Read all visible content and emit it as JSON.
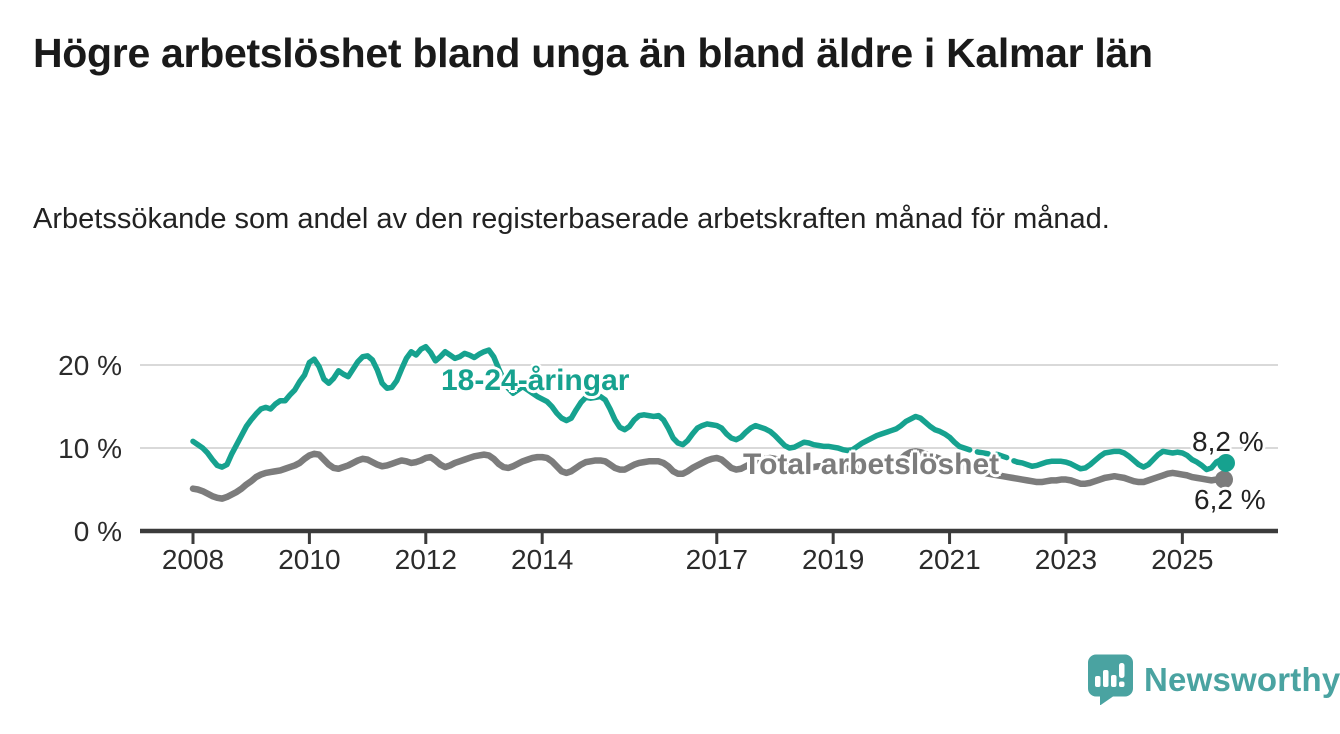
{
  "title": "Högre arbetslöshet bland unga än bland äldre i Kalmar län",
  "subtitle": "Arbetssökande som andel av den registerbaserade arbetskraften månad för månad.",
  "footer": {
    "brand": "Newsworthy",
    "brand_color": "#4aa3a1"
  },
  "colors": {
    "youth_line": "#16a28f",
    "total_line": "#7c7c7c",
    "axis": "#3b3b3b",
    "gridline": "#d9d9d9",
    "text": "#2b2b2b",
    "value_label_text": "#222222"
  },
  "chart_data": {
    "type": "line",
    "title": "",
    "xlabel": "",
    "ylabel": "",
    "x_unit": "month",
    "x_start": "2008-01",
    "x_end": "2025-10",
    "ylim": [
      0,
      24
    ],
    "y_ticks": [
      0,
      10,
      20
    ],
    "y_tick_labels": [
      "0 %",
      "10 %",
      "20 %"
    ],
    "x_tick_labels": [
      "2008",
      "2010",
      "2012",
      "2014",
      "2017",
      "2019",
      "2021",
      "2023",
      "2025"
    ],
    "grid": "horizontal",
    "legend_position": "inline-labels",
    "series": [
      {
        "name": "18-24-åringar",
        "color": "#16a28f",
        "end_label": "8,2 %",
        "end_value": 8.2,
        "dashed_from": "2021-03",
        "dashed_to": "2022-03",
        "values": [
          10.8,
          10.4,
          10.0,
          9.4,
          8.6,
          7.9,
          7.7,
          8.0,
          9.3,
          10.4,
          11.5,
          12.6,
          13.4,
          14.1,
          14.7,
          14.9,
          14.7,
          15.3,
          15.7,
          15.7,
          16.4,
          17.0,
          18.0,
          18.8,
          20.3,
          20.7,
          19.8,
          18.3,
          17.8,
          18.4,
          19.3,
          18.9,
          18.6,
          19.5,
          20.4,
          21.0,
          21.1,
          20.6,
          19.4,
          17.8,
          17.2,
          17.3,
          18.1,
          19.5,
          20.8,
          21.6,
          21.2,
          21.9,
          22.2,
          21.5,
          20.5,
          21.0,
          21.6,
          21.2,
          20.8,
          21.0,
          21.4,
          21.2,
          20.9,
          21.3,
          21.6,
          21.8,
          21.0,
          19.6,
          18.3,
          17.2,
          16.6,
          17.0,
          17.4,
          17.0,
          16.6,
          16.2,
          15.9,
          15.6,
          15.0,
          14.2,
          13.6,
          13.3,
          13.6,
          14.6,
          15.5,
          16.1,
          16.0,
          16.1,
          16.2,
          15.8,
          14.7,
          13.4,
          12.5,
          12.2,
          12.6,
          13.4,
          13.9,
          14.0,
          13.9,
          13.8,
          13.9,
          13.4,
          12.4,
          11.2,
          10.6,
          10.4,
          10.9,
          11.7,
          12.4,
          12.7,
          12.9,
          12.8,
          12.7,
          12.4,
          11.7,
          11.2,
          11.0,
          11.3,
          11.9,
          12.4,
          12.7,
          12.5,
          12.3,
          12.0,
          11.5,
          10.9,
          10.3,
          10.0,
          10.1,
          10.4,
          10.7,
          10.6,
          10.4,
          10.3,
          10.2,
          10.2,
          10.1,
          10.0,
          9.8,
          9.7,
          9.8,
          10.2,
          10.6,
          10.9,
          11.2,
          11.5,
          11.7,
          11.9,
          12.1,
          12.3,
          12.7,
          13.2,
          13.5,
          13.8,
          13.6,
          13.1,
          12.6,
          12.2,
          12.0,
          11.7,
          11.3,
          10.7,
          10.2,
          10.0,
          9.8,
          9.6,
          9.5,
          9.4,
          9.3,
          9.3,
          9.2,
          9.0,
          8.8,
          8.5,
          8.3,
          8.2,
          8.0,
          7.8,
          7.9,
          8.1,
          8.3,
          8.4,
          8.4,
          8.4,
          8.3,
          8.1,
          7.8,
          7.5,
          7.6,
          8.0,
          8.5,
          9.0,
          9.4,
          9.5,
          9.6,
          9.6,
          9.4,
          9.0,
          8.5,
          8.0,
          7.7,
          8.0,
          8.6,
          9.2,
          9.6,
          9.5,
          9.4,
          9.5,
          9.4,
          9.1,
          8.6,
          8.3,
          7.9,
          7.4,
          7.6,
          8.3,
          8.6,
          8.2
        ]
      },
      {
        "name": "Total arbetslöshet",
        "color": "#7c7c7c",
        "end_label": "6,2 %",
        "end_value": 6.2,
        "values": [
          5.1,
          5.0,
          4.8,
          4.5,
          4.2,
          4.0,
          3.9,
          4.1,
          4.4,
          4.7,
          5.1,
          5.6,
          6.0,
          6.5,
          6.8,
          7.0,
          7.1,
          7.2,
          7.3,
          7.5,
          7.7,
          7.9,
          8.2,
          8.7,
          9.1,
          9.3,
          9.2,
          8.6,
          8.0,
          7.6,
          7.5,
          7.7,
          7.9,
          8.2,
          8.5,
          8.7,
          8.6,
          8.3,
          8.0,
          7.8,
          7.9,
          8.1,
          8.3,
          8.5,
          8.4,
          8.2,
          8.3,
          8.5,
          8.8,
          8.9,
          8.5,
          8.0,
          7.7,
          7.9,
          8.2,
          8.4,
          8.6,
          8.8,
          9.0,
          9.1,
          9.2,
          9.1,
          8.7,
          8.1,
          7.7,
          7.6,
          7.8,
          8.1,
          8.4,
          8.6,
          8.8,
          8.9,
          8.9,
          8.8,
          8.4,
          7.8,
          7.2,
          7.0,
          7.2,
          7.6,
          8.0,
          8.3,
          8.4,
          8.5,
          8.5,
          8.4,
          8.0,
          7.6,
          7.4,
          7.4,
          7.7,
          8.0,
          8.2,
          8.3,
          8.4,
          8.4,
          8.4,
          8.2,
          7.8,
          7.2,
          6.9,
          6.9,
          7.2,
          7.6,
          7.9,
          8.2,
          8.5,
          8.7,
          8.8,
          8.6,
          8.1,
          7.6,
          7.4,
          7.5,
          7.8,
          8.1,
          8.4,
          8.6,
          8.7,
          8.8,
          8.7,
          8.5,
          8.1,
          7.7,
          7.4,
          7.3,
          7.4,
          7.6,
          7.7,
          7.8,
          7.8,
          7.9,
          7.9,
          7.8,
          7.6,
          7.5,
          7.4,
          7.5,
          7.7,
          7.8,
          7.9,
          8.0,
          8.1,
          8.2,
          8.3,
          8.4,
          8.7,
          9.2,
          9.5,
          9.6,
          9.5,
          9.3,
          9.1,
          8.9,
          8.7,
          8.5,
          8.3,
          8.1,
          7.9,
          7.7,
          7.5,
          7.3,
          7.2,
          7.0,
          6.9,
          6.8,
          6.7,
          6.6,
          6.5,
          6.4,
          6.3,
          6.2,
          6.1,
          6.0,
          5.9,
          5.9,
          6.0,
          6.1,
          6.1,
          6.2,
          6.2,
          6.1,
          5.9,
          5.7,
          5.7,
          5.8,
          6.0,
          6.2,
          6.4,
          6.5,
          6.6,
          6.5,
          6.4,
          6.2,
          6.0,
          5.9,
          5.9,
          6.1,
          6.3,
          6.5,
          6.7,
          6.9,
          7.0,
          6.9,
          6.8,
          6.7,
          6.5,
          6.4,
          6.3,
          6.2,
          6.1,
          6.2,
          6.3,
          6.2
        ]
      }
    ]
  }
}
